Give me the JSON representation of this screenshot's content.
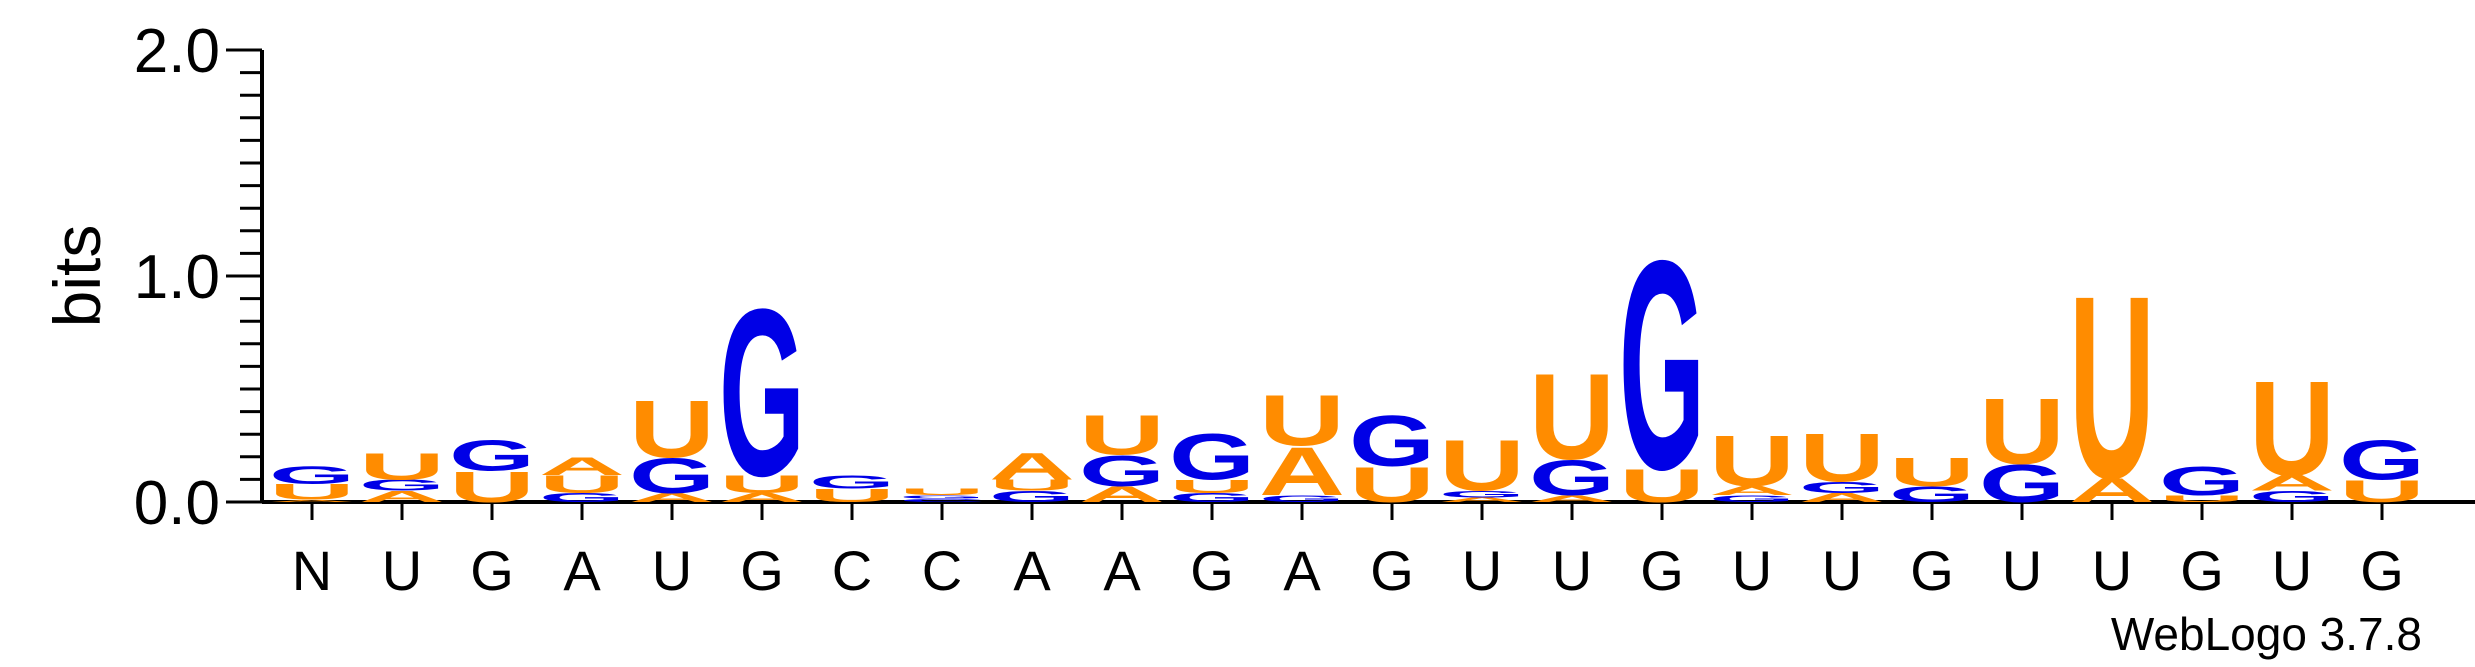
{
  "chart_data": {
    "type": "sequence-logo",
    "ylabel": "bits",
    "ylim": [
      0,
      2.0
    ],
    "yticks": [
      "0.0",
      "1.0",
      "2.0"
    ],
    "credit": "WebLogo 3.7.8",
    "colors": {
      "U": "#ff8c00",
      "G": "#0000e6",
      "A": "#ff8c00",
      "C": "#0000e6"
    },
    "positions": [
      {
        "label": "N",
        "stack": [
          [
            "A",
            0.01
          ],
          [
            "U",
            0.07
          ],
          [
            "G",
            0.08
          ]
        ]
      },
      {
        "label": "U",
        "stack": [
          [
            "A",
            0.05
          ],
          [
            "G",
            0.05
          ],
          [
            "U",
            0.12
          ]
        ]
      },
      {
        "label": "G",
        "stack": [
          [
            "U",
            0.14
          ],
          [
            "G",
            0.14
          ]
        ]
      },
      {
        "label": "A",
        "stack": [
          [
            "G",
            0.04
          ],
          [
            "U",
            0.08
          ],
          [
            "A",
            0.08
          ]
        ]
      },
      {
        "label": "U",
        "stack": [
          [
            "A",
            0.04
          ],
          [
            "G",
            0.16
          ],
          [
            "U",
            0.26
          ]
        ]
      },
      {
        "label": "G",
        "stack": [
          [
            "A",
            0.04
          ],
          [
            "U",
            0.08
          ],
          [
            "G",
            0.76
          ]
        ]
      },
      {
        "label": "C",
        "stack": [
          [
            "U",
            0.06
          ],
          [
            "G",
            0.06
          ]
        ]
      },
      {
        "label": "C",
        "stack": [
          [
            "C",
            0.015
          ],
          [
            "G",
            0.015
          ],
          [
            "U",
            0.03
          ]
        ]
      },
      {
        "label": "A",
        "stack": [
          [
            "G",
            0.05
          ],
          [
            "U",
            0.05
          ],
          [
            "A",
            0.12
          ]
        ]
      },
      {
        "label": "A",
        "stack": [
          [
            "A",
            0.07
          ],
          [
            "G",
            0.14
          ],
          [
            "U",
            0.18
          ]
        ]
      },
      {
        "label": "G",
        "stack": [
          [
            "G",
            0.04
          ],
          [
            "U",
            0.06
          ],
          [
            "G",
            0.21
          ]
        ]
      },
      {
        "label": "A",
        "stack": [
          [
            "G",
            0.03
          ],
          [
            "A",
            0.22
          ],
          [
            "U",
            0.23
          ]
        ]
      },
      {
        "label": "G",
        "stack": [
          [
            "U",
            0.16
          ],
          [
            "G",
            0.23
          ]
        ]
      },
      {
        "label": "U",
        "stack": [
          [
            "A",
            0.02
          ],
          [
            "G",
            0.03
          ],
          [
            "U",
            0.23
          ]
        ]
      },
      {
        "label": "U",
        "stack": [
          [
            "A",
            0.03
          ],
          [
            "G",
            0.16
          ],
          [
            "U",
            0.39
          ]
        ]
      },
      {
        "label": "G",
        "stack": [
          [
            "U",
            0.15
          ],
          [
            "G",
            0.95
          ]
        ]
      },
      {
        "label": "U",
        "stack": [
          [
            "G",
            0.03
          ],
          [
            "A",
            0.04
          ],
          [
            "U",
            0.23
          ]
        ]
      },
      {
        "label": "U",
        "stack": [
          [
            "A",
            0.04
          ],
          [
            "G",
            0.05
          ],
          [
            "U",
            0.22
          ]
        ]
      },
      {
        "label": "G",
        "stack": [
          [
            "G",
            0.07
          ],
          [
            "U",
            0.13
          ]
        ]
      },
      {
        "label": "U",
        "stack": [
          [
            "G",
            0.17
          ],
          [
            "U",
            0.3
          ]
        ]
      },
      {
        "label": "U",
        "stack": [
          [
            "A",
            0.11
          ],
          [
            "U",
            0.83
          ]
        ]
      },
      {
        "label": "G",
        "stack": [
          [
            "U",
            0.03
          ],
          [
            "G",
            0.13
          ]
        ]
      },
      {
        "label": "U",
        "stack": [
          [
            "G",
            0.05
          ],
          [
            "A",
            0.07
          ],
          [
            "U",
            0.43
          ]
        ]
      },
      {
        "label": "G",
        "stack": [
          [
            "U",
            0.1
          ],
          [
            "G",
            0.18
          ]
        ]
      }
    ]
  }
}
